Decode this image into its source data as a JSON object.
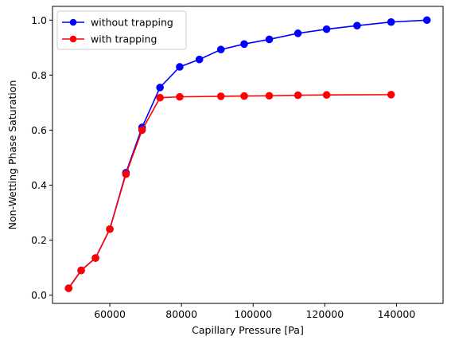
{
  "chart_data": {
    "type": "line",
    "title": "",
    "xlabel": "Capillary Pressure [Pa]",
    "ylabel": "Non-Wetting Phase Saturation",
    "xlim": [
      44000,
      153000
    ],
    "ylim": [
      -0.03,
      1.05
    ],
    "xticks": [
      60000,
      80000,
      100000,
      120000,
      140000
    ],
    "xtick_labels": [
      "60000",
      "80000",
      "100000",
      "120000",
      "140000"
    ],
    "yticks": [
      0.0,
      0.2,
      0.4,
      0.6,
      0.8,
      1.0
    ],
    "ytick_labels": [
      "0.0",
      "0.2",
      "0.4",
      "0.6",
      "0.8",
      "1.0"
    ],
    "grid": false,
    "legend_position": "top-left",
    "series": [
      {
        "name": "without trapping",
        "color": "#0000ff",
        "marker": "circle",
        "x": [
          48500,
          52000,
          56000,
          60000,
          64500,
          69000,
          74000,
          79500,
          85000,
          91000,
          97500,
          104500,
          112500,
          120500,
          129000,
          138500,
          148500
        ],
        "y": [
          0.025,
          0.09,
          0.135,
          0.24,
          0.445,
          0.61,
          0.755,
          0.83,
          0.857,
          0.893,
          0.913,
          0.93,
          0.952,
          0.967,
          0.98,
          0.993,
          1.0
        ]
      },
      {
        "name": "with trapping",
        "color": "#ff0000",
        "marker": "circle",
        "x": [
          48500,
          52000,
          56000,
          60000,
          64500,
          69000,
          74000,
          79500,
          91000,
          97500,
          104500,
          112500,
          120500,
          138500
        ],
        "y": [
          0.025,
          0.09,
          0.135,
          0.24,
          0.44,
          0.6,
          0.718,
          0.721,
          0.723,
          0.724,
          0.725,
          0.727,
          0.728,
          0.729
        ]
      }
    ]
  }
}
